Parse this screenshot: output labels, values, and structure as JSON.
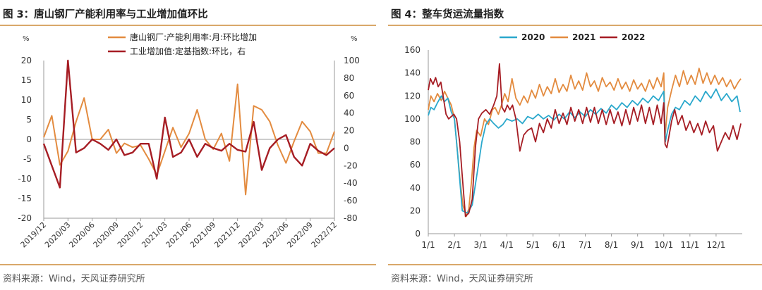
{
  "panels": {
    "left": {
      "title": "图 3：唐山钢厂产能利用率与工业增加值环比",
      "source": "资料来源：Wind，天风证券研究所"
    },
    "right": {
      "title": "图 4：整车货运流量指数",
      "source": "资料来源：Wind，天风证券研究所"
    }
  },
  "colors": {
    "orange": "#e38b3f",
    "darkred": "#a61d24",
    "cyan": "#2aa8cc",
    "rule": "#d9a86a"
  },
  "chart_data": [
    {
      "type": "line",
      "title": "",
      "y_left": {
        "unit": "%",
        "ylim": [
          -20,
          20
        ],
        "ticks": [
          20,
          15,
          10,
          5,
          0,
          -5,
          -10,
          -15,
          -20
        ]
      },
      "y_right": {
        "unit": "%",
        "ylim": [
          -80,
          100
        ],
        "ticks": [
          100,
          80,
          60,
          40,
          20,
          0,
          -20,
          -40,
          -60,
          -80
        ]
      },
      "x_ticks": [
        "2019/12",
        "2020/03",
        "2020/06",
        "2020/09",
        "2020/12",
        "2021/03",
        "2021/06",
        "2021/09",
        "2021/12",
        "2022/03",
        "2022/06",
        "2022/09",
        "2022/12"
      ],
      "legend_position": "top-right",
      "grid": false,
      "series": [
        {
          "name": "唐山钢厂:产能利用率:月:环比增加",
          "axis": "left",
          "color": "#e38b3f",
          "x": [
            "2019/12",
            "2020/01",
            "2020/02",
            "2020/03",
            "2020/04",
            "2020/05",
            "2020/06",
            "2020/07",
            "2020/08",
            "2020/09",
            "2020/10",
            "2020/11",
            "2020/12",
            "2021/01",
            "2021/02",
            "2021/03",
            "2021/04",
            "2021/05",
            "2021/06",
            "2021/07",
            "2021/08",
            "2021/09",
            "2021/10",
            "2021/11",
            "2021/12",
            "2022/01",
            "2022/02",
            "2022/03",
            "2022/04",
            "2022/05",
            "2022/06",
            "2022/07",
            "2022/08",
            "2022/09",
            "2022/10",
            "2022/11",
            "2022/12"
          ],
          "values": [
            0.5,
            6,
            -6.5,
            -3,
            4.5,
            10.5,
            0,
            0,
            2.5,
            -3.5,
            -1,
            -2,
            -1.5,
            -5,
            -9,
            -3,
            3,
            -2,
            1.5,
            7.5,
            0,
            -2.5,
            1.5,
            -5.5,
            14,
            -14,
            8.5,
            7.5,
            4.5,
            -1.5,
            -6,
            -0.5,
            4.5,
            2,
            -3.5,
            -3.5,
            2
          ]
        },
        {
          "name": "工业增加值:定基指数:环比，右",
          "axis": "right",
          "color": "#a61d24",
          "x": [
            "2019/12",
            "2020/01",
            "2020/02",
            "2020/03",
            "2020/04",
            "2020/05",
            "2020/06",
            "2020/07",
            "2020/08",
            "2020/09",
            "2020/10",
            "2020/11",
            "2020/12",
            "2021/01",
            "2021/02",
            "2021/03",
            "2021/04",
            "2021/05",
            "2021/06",
            "2021/07",
            "2021/08",
            "2021/09",
            "2021/10",
            "2021/11",
            "2021/12",
            "2022/01",
            "2022/02",
            "2022/03",
            "2022/04",
            "2022/05",
            "2022/06",
            "2022/07",
            "2022/08",
            "2022/09",
            "2022/10",
            "2022/11",
            "2022/12"
          ],
          "values": [
            5,
            -20,
            -45,
            100,
            -5,
            0,
            10,
            5,
            -2,
            10,
            -8,
            -5,
            5,
            5,
            -35,
            35,
            -10,
            -5,
            10,
            -10,
            5,
            0,
            -3,
            5,
            -2,
            -4,
            30,
            -25,
            0,
            10,
            15,
            -10,
            -20,
            5,
            -3,
            -8,
            0
          ]
        }
      ]
    },
    {
      "type": "line",
      "title": "",
      "ylim": [
        0,
        160
      ],
      "y_ticks": [
        160,
        140,
        120,
        100,
        80,
        60,
        40,
        20,
        0
      ],
      "x_ticks": [
        "1/1",
        "2/1",
        "3/1",
        "4/1",
        "5/1",
        "6/1",
        "7/1",
        "8/1",
        "9/1",
        "10/1",
        "11/1",
        "12/1"
      ],
      "legend_position": "top",
      "grid": false,
      "series": [
        {
          "name": "2020",
          "color": "#2aa8cc",
          "x": [
            0,
            0.1,
            0.22,
            0.35,
            0.5,
            0.62,
            0.75,
            0.88,
            1.0,
            1.12,
            1.3,
            1.5,
            1.68,
            1.85,
            2.05,
            2.2,
            2.35,
            2.5,
            2.68,
            2.85,
            3.0,
            3.2,
            3.4,
            3.6,
            3.8,
            4.0,
            4.2,
            4.4,
            4.6,
            4.8,
            5.0,
            5.2,
            5.4,
            5.6,
            5.8,
            6.0,
            6.2,
            6.4,
            6.6,
            6.8,
            7.0,
            7.2,
            7.4,
            7.6,
            7.8,
            8.0,
            8.2,
            8.4,
            8.6,
            8.8,
            9.0,
            9.06,
            9.15,
            9.3,
            9.45,
            9.6,
            9.8,
            10.0,
            10.2,
            10.4,
            10.6,
            10.8,
            11.0,
            11.2,
            11.4,
            11.6,
            11.8,
            11.92
          ],
          "values": [
            103,
            110,
            108,
            114,
            120,
            115,
            118,
            106,
            100,
            70,
            20,
            18,
            25,
            50,
            80,
            95,
            100,
            96,
            92,
            95,
            100,
            98,
            100,
            96,
            102,
            100,
            104,
            100,
            103,
            99,
            104,
            100,
            106,
            101,
            106,
            102,
            108,
            104,
            109,
            105,
            112,
            108,
            114,
            110,
            116,
            112,
            118,
            114,
            120,
            116,
            124,
            80,
            90,
            104,
            110,
            108,
            116,
            112,
            120,
            115,
            124,
            118,
            126,
            116,
            122,
            115,
            120,
            106
          ]
        },
        {
          "name": "2021",
          "color": "#e38b3f",
          "x": [
            0,
            0.1,
            0.22,
            0.35,
            0.5,
            0.62,
            0.75,
            0.88,
            1.0,
            1.08,
            1.2,
            1.32,
            1.45,
            1.55,
            1.65,
            1.75,
            1.85,
            2.0,
            2.15,
            2.3,
            2.45,
            2.55,
            2.68,
            2.8,
            2.92,
            3.05,
            3.2,
            3.35,
            3.5,
            3.65,
            3.8,
            3.95,
            4.1,
            4.25,
            4.4,
            4.55,
            4.7,
            4.85,
            5.0,
            5.15,
            5.3,
            5.45,
            5.6,
            5.75,
            5.9,
            6.05,
            6.2,
            6.35,
            6.5,
            6.65,
            6.8,
            6.95,
            7.1,
            7.25,
            7.4,
            7.55,
            7.7,
            7.85,
            8.0,
            8.15,
            8.3,
            8.45,
            8.6,
            8.75,
            8.9,
            9.0,
            9.05,
            9.15,
            9.3,
            9.45,
            9.6,
            9.75,
            9.9,
            10.05,
            10.2,
            10.35,
            10.5,
            10.65,
            10.8,
            10.95,
            11.1,
            11.25,
            11.4,
            11.55,
            11.7,
            11.85,
            11.95
          ],
          "values": [
            108,
            120,
            115,
            122,
            116,
            124,
            118,
            112,
            100,
            80,
            50,
            25,
            15,
            22,
            45,
            75,
            90,
            85,
            100,
            95,
            108,
            110,
            104,
            112,
            122,
            115,
            135,
            118,
            112,
            120,
            114,
            125,
            118,
            130,
            120,
            128,
            122,
            135,
            123,
            130,
            124,
            138,
            126,
            133,
            125,
            140,
            128,
            133,
            124,
            136,
            128,
            132,
            125,
            135,
            126,
            132,
            124,
            134,
            126,
            131,
            124,
            134,
            126,
            136,
            128,
            140,
            85,
            110,
            125,
            138,
            128,
            142,
            130,
            138,
            130,
            144,
            131,
            140,
            130,
            138,
            130,
            136,
            128,
            134,
            126,
            132,
            135
          ]
        },
        {
          "name": "2022",
          "color": "#a61d24",
          "x": [
            0,
            0.08,
            0.18,
            0.28,
            0.38,
            0.48,
            0.58,
            0.68,
            0.78,
            0.88,
            0.98,
            1.08,
            1.2,
            1.3,
            1.42,
            1.55,
            1.68,
            1.8,
            1.92,
            2.05,
            2.2,
            2.35,
            2.5,
            2.62,
            2.72,
            2.82,
            2.92,
            3.02,
            3.12,
            3.22,
            3.35,
            3.5,
            3.65,
            3.8,
            3.95,
            4.1,
            4.25,
            4.4,
            4.55,
            4.7,
            4.85,
            5.0,
            5.15,
            5.3,
            5.45,
            5.6,
            5.75,
            5.9,
            6.05,
            6.2,
            6.35,
            6.5,
            6.65,
            6.8,
            6.95,
            7.1,
            7.25,
            7.4,
            7.55,
            7.7,
            7.85,
            8.0,
            8.15,
            8.3,
            8.45,
            8.6,
            8.75,
            8.9,
            9.0,
            9.05,
            9.12,
            9.2,
            9.3,
            9.42,
            9.55,
            9.7,
            9.85,
            10.0,
            10.15,
            10.3,
            10.45,
            10.6,
            10.75,
            10.9,
            11.05,
            11.2,
            11.35,
            11.5,
            11.65,
            11.8,
            11.95
          ],
          "values": [
            125,
            135,
            130,
            136,
            128,
            132,
            118,
            104,
            100,
            102,
            104,
            100,
            80,
            50,
            15,
            18,
            30,
            75,
            100,
            105,
            108,
            104,
            112,
            120,
            148,
            110,
            106,
            112,
            108,
            112,
            100,
            72,
            86,
            90,
            92,
            80,
            96,
            88,
            100,
            92,
            108,
            96,
            105,
            95,
            110,
            98,
            108,
            96,
            110,
            97,
            110,
            96,
            108,
            95,
            108,
            96,
            106,
            94,
            108,
            95,
            110,
            98,
            112,
            96,
            110,
            95,
            112,
            96,
            114,
            78,
            75,
            85,
            98,
            108,
            95,
            103,
            90,
            98,
            88,
            96,
            86,
            98,
            88,
            94,
            72,
            80,
            88,
            82,
            94,
            82,
            96
          ]
        }
      ]
    }
  ]
}
